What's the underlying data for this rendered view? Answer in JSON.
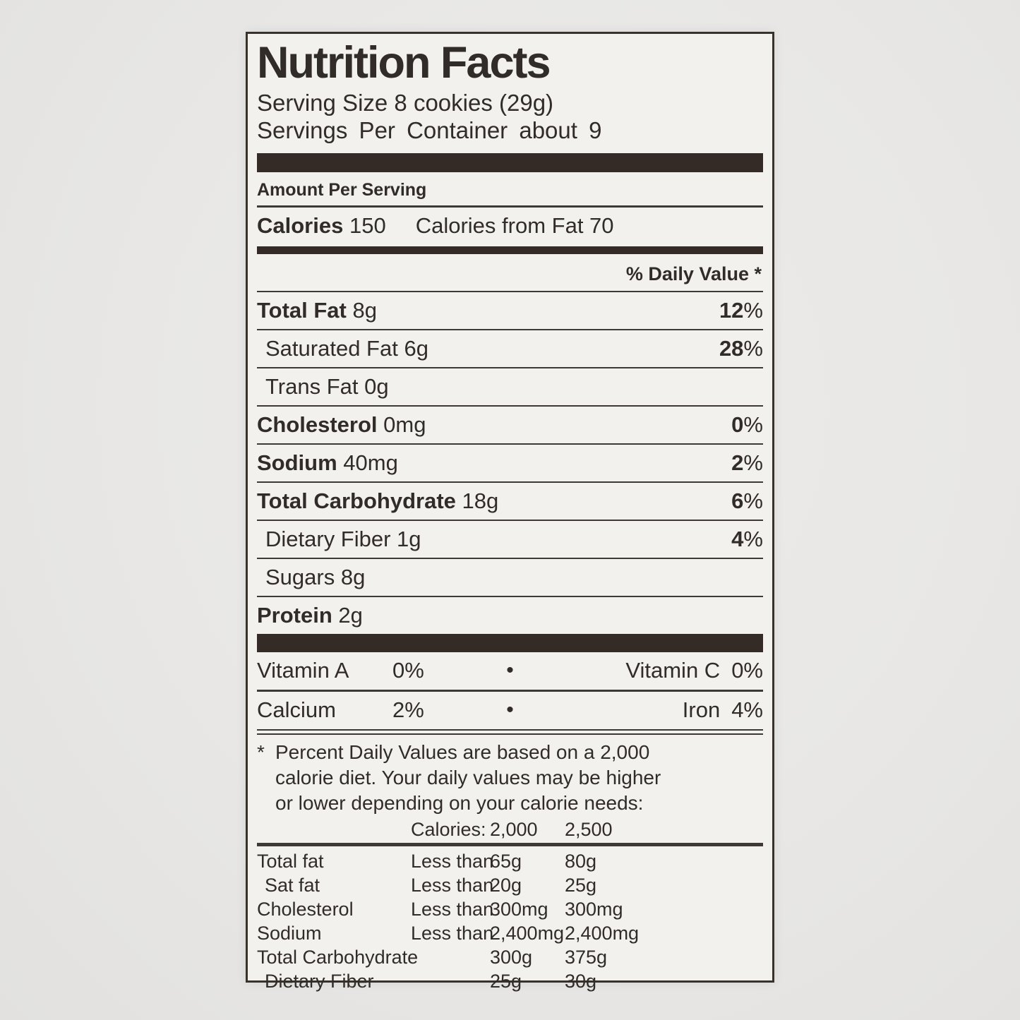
{
  "label": {
    "title": "Nutrition Facts",
    "serving_size": "Serving Size 8 cookies (29g)",
    "servings_per_container": "Servings Per Container about 9",
    "amount_per_serving": "Amount Per Serving",
    "calories_label": "Calories",
    "calories_value": "150",
    "calories_from_fat": "Calories from Fat 70",
    "daily_value_header": "% Daily Value *",
    "nutrients": [
      {
        "name": "Total Fat",
        "amount": "8g",
        "dv": "12",
        "bold": true,
        "indent": false
      },
      {
        "name": "Saturated Fat",
        "amount": "6g",
        "dv": "28",
        "bold": false,
        "indent": true
      },
      {
        "name": "Trans Fat",
        "amount": "0g",
        "dv": "",
        "bold": false,
        "indent": true
      },
      {
        "name": "Cholesterol",
        "amount": "0mg",
        "dv": "0",
        "bold": true,
        "indent": false
      },
      {
        "name": "Sodium",
        "amount": "40mg",
        "dv": "2",
        "bold": true,
        "indent": false
      },
      {
        "name": "Total Carbohydrate",
        "amount": "18g",
        "dv": "6",
        "bold": true,
        "indent": false
      },
      {
        "name": "Dietary Fiber",
        "amount": "1g",
        "dv": "4",
        "bold": false,
        "indent": true
      },
      {
        "name": "Sugars",
        "amount": "8g",
        "dv": "",
        "bold": false,
        "indent": true
      },
      {
        "name": "Protein",
        "amount": "2g",
        "dv": "",
        "bold": true,
        "indent": false
      }
    ],
    "micronutrients": {
      "bullet": "•",
      "row1": {
        "left_name": "Vitamin A",
        "left_value": "0%",
        "right_name": "Vitamin C",
        "right_value": "0%"
      },
      "row2": {
        "left_name": "Calcium",
        "left_value": "2%",
        "right_name": "Iron",
        "right_value": "4%"
      }
    },
    "footnote_marker": "*",
    "footnote_lines": [
      "Percent Daily Values are based on a 2,000",
      "calorie diet. Your daily values may be higher",
      "or lower depending on your calorie needs:"
    ],
    "dv_table": {
      "header": {
        "label": "Calories:",
        "col1": "2,000",
        "col2": "2,500"
      },
      "rows": [
        {
          "name": "Total fat",
          "qualifier": "Less than",
          "col1": "65g",
          "col2": "80g",
          "indent": false
        },
        {
          "name": "Sat fat",
          "qualifier": "Less than",
          "col1": "20g",
          "col2": "25g",
          "indent": true
        },
        {
          "name": "Cholesterol",
          "qualifier": "Less than",
          "col1": "300mg",
          "col2": "300mg",
          "indent": false
        },
        {
          "name": "Sodium",
          "qualifier": "Less than",
          "col1": "2,400mg",
          "col2": "2,400mg",
          "indent": false
        },
        {
          "name": "Total Carbohydrate",
          "qualifier": "",
          "col1": "300g",
          "col2": "375g",
          "indent": false
        },
        {
          "name": "Dietary Fiber",
          "qualifier": "",
          "col1": "25g",
          "col2": "30g",
          "indent": true
        }
      ]
    },
    "colors": {
      "ink": "#322c28",
      "bar": "#342b26",
      "label_bg": "#f2f1ee",
      "page_bg": "#e8e7e5"
    }
  }
}
